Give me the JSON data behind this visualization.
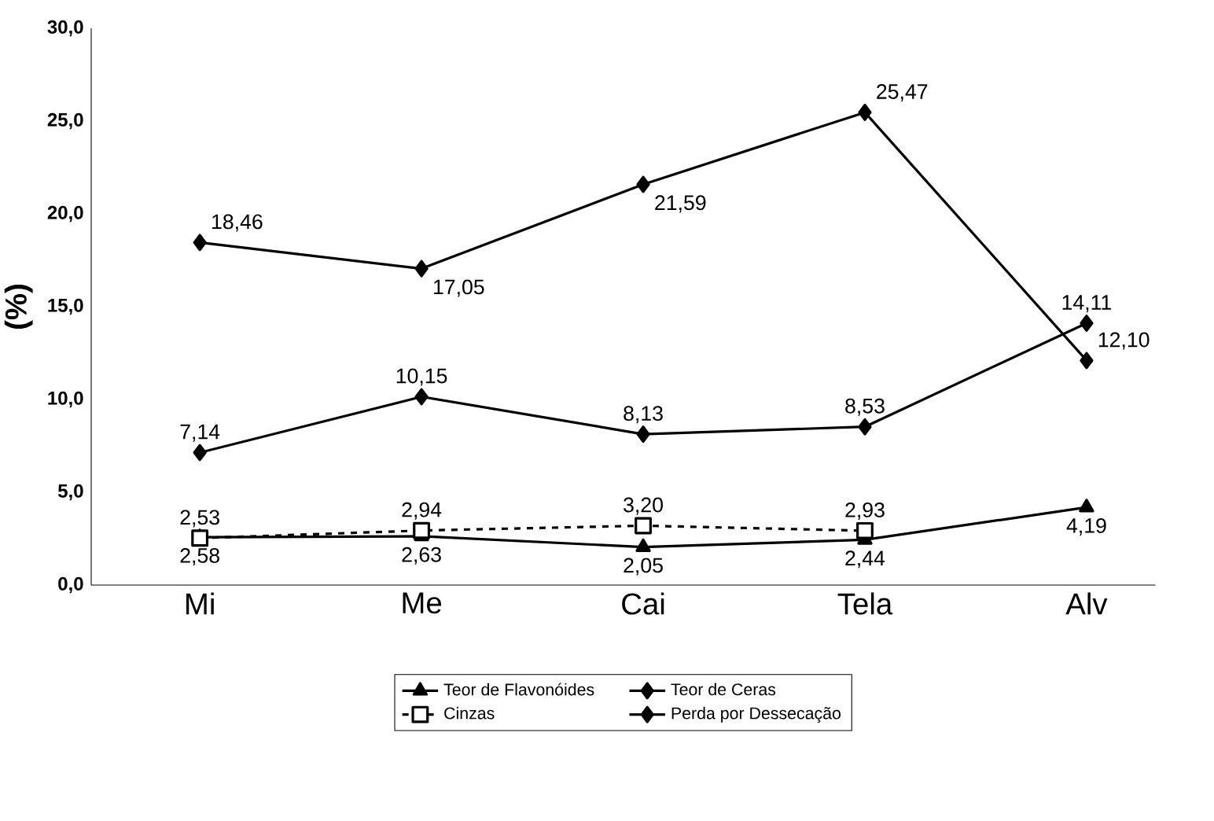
{
  "chart_data": {
    "type": "line",
    "ylabel": "(%)",
    "categories": [
      "Mi",
      "Me",
      "Cai",
      "Tela",
      "Alv"
    ],
    "ylim": [
      0,
      30
    ],
    "yticks": [
      {
        "value": 0,
        "label": "0,0"
      },
      {
        "value": 5,
        "label": "5,0"
      },
      {
        "value": 10,
        "label": "10,0"
      },
      {
        "value": 15,
        "label": "15,0"
      },
      {
        "value": 20,
        "label": "20,0"
      },
      {
        "value": 25,
        "label": "25,0"
      },
      {
        "value": 30,
        "label": "30,0"
      }
    ],
    "grid": false,
    "legend": "bottom",
    "line_style": "solid",
    "series": [
      {
        "name": "Teor de Flavonóides",
        "color": "#000000",
        "marker": "triangle",
        "values": [
          2.58,
          2.63,
          2.05,
          2.44,
          4.19
        ],
        "value_labels": [
          "2,58",
          "2,63",
          "2,05",
          "2,44",
          "4,19"
        ]
      },
      {
        "name": "Teor de Ceras",
        "color": "#000000",
        "marker": "diamond",
        "values": [
          18.46,
          17.05,
          21.59,
          25.47,
          12.1
        ],
        "value_labels": [
          "18,46",
          "17,05",
          "21,59",
          "25,47",
          "12,10"
        ]
      },
      {
        "name": "Cinzas",
        "color": "#000000",
        "marker": "square",
        "line_style": "dashed",
        "values": [
          2.53,
          2.94,
          3.2,
          2.93,
          null
        ],
        "value_labels": [
          "2,53",
          "2,94",
          "3,20",
          "2,93",
          null
        ]
      },
      {
        "name": "Perda por Dessecação",
        "color": "#000000",
        "marker": "diamond",
        "values": [
          7.14,
          10.15,
          8.13,
          8.53,
          14.11
        ],
        "value_labels": [
          "7,14",
          "10,15",
          "8,13",
          "8,53",
          "14,11"
        ]
      }
    ]
  }
}
